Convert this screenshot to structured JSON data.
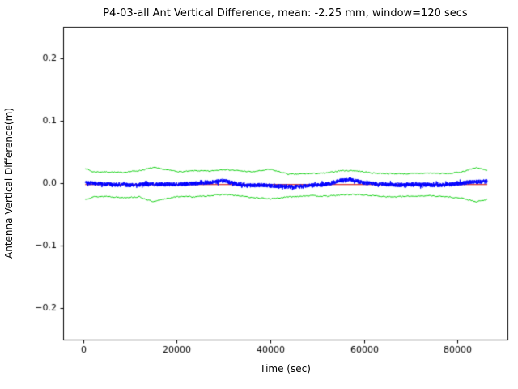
{
  "chart_data": {
    "type": "line",
    "title": "P4-03-all Ant Vertical Difference, mean: -2.25 mm, window=120 secs",
    "xlabel": "Time (sec)",
    "ylabel": "Antenna Vertical Difference(m)",
    "xlim": [
      -4320,
      90720
    ],
    "ylim": [
      -0.25,
      0.25
    ],
    "xticks": [
      0,
      20000,
      40000,
      60000,
      80000
    ],
    "xtick_labels": [
      "0",
      "20000",
      "40000",
      "60000",
      "80000"
    ],
    "yticks": [
      -0.2,
      -0.1,
      0.0,
      0.1,
      0.2
    ],
    "ytick_labels": [
      "−0.2",
      "−0.1",
      "0.0",
      "0.1",
      "0.2"
    ],
    "grid": false,
    "legend": "none",
    "axis_color": "#000000",
    "mean_mm": -2.25,
    "window_secs": 120,
    "series": [
      {
        "name": "upper-envelope",
        "color": "#00cc00",
        "style": "polyline",
        "line_width": 1,
        "x_start": 400,
        "x_end": 86400,
        "noise_amp": 0.0009,
        "seed": 7,
        "x": [
          400,
          2000,
          5000,
          8000,
          12000,
          15000,
          18000,
          21000,
          24000,
          27000,
          30000,
          33000,
          36000,
          40000,
          44000,
          48000,
          52000,
          55000,
          58000,
          62000,
          66000,
          70000,
          74000,
          78000,
          81000,
          84000,
          86400
        ],
        "y": [
          0.024,
          0.018,
          0.018,
          0.017,
          0.02,
          0.025,
          0.021,
          0.018,
          0.02,
          0.019,
          0.022,
          0.02,
          0.018,
          0.022,
          0.014,
          0.015,
          0.016,
          0.02,
          0.02,
          0.016,
          0.015,
          0.015,
          0.016,
          0.015,
          0.018,
          0.025,
          0.02
        ]
      },
      {
        "name": "lower-envelope",
        "color": "#00cc00",
        "style": "polyline",
        "line_width": 1,
        "x_start": 400,
        "x_end": 86400,
        "noise_amp": 0.0009,
        "seed": 13,
        "x": [
          400,
          2000,
          5000,
          8000,
          12000,
          15000,
          18000,
          21000,
          24000,
          27000,
          30000,
          33000,
          36000,
          40000,
          44000,
          48000,
          52000,
          55000,
          58000,
          62000,
          66000,
          70000,
          74000,
          78000,
          81000,
          84000,
          86400
        ],
        "y": [
          -0.026,
          -0.022,
          -0.021,
          -0.023,
          -0.022,
          -0.03,
          -0.024,
          -0.021,
          -0.022,
          -0.02,
          -0.018,
          -0.02,
          -0.023,
          -0.025,
          -0.022,
          -0.02,
          -0.021,
          -0.019,
          -0.018,
          -0.02,
          -0.022,
          -0.021,
          -0.02,
          -0.022,
          -0.024,
          -0.03,
          -0.026
        ]
      },
      {
        "name": "mean-line",
        "color": "#cc0000",
        "style": "hline",
        "line_width": 1,
        "y": -0.00225,
        "x_start": 400,
        "x_end": 86400
      },
      {
        "name": "vertical-difference",
        "color": "#0000ff",
        "style": "noisy",
        "line_width": 1,
        "x_start": 400,
        "x_end": 86400,
        "n": 2600,
        "noise_amp": 0.0035,
        "seed": 42,
        "x": [
          400,
          5000,
          10000,
          15000,
          20000,
          25000,
          28000,
          30000,
          32000,
          35000,
          38000,
          42000,
          45000,
          48000,
          52000,
          55000,
          57000,
          60000,
          63000,
          67000,
          71000,
          75000,
          79000,
          83000,
          86400
        ],
        "y": [
          0.001,
          -0.002,
          -0.003,
          -0.002,
          -0.002,
          0.0,
          0.002,
          0.004,
          0.0,
          -0.004,
          -0.003,
          -0.005,
          -0.006,
          -0.004,
          -0.002,
          0.004,
          0.006,
          0.0,
          -0.001,
          -0.003,
          -0.002,
          -0.003,
          -0.002,
          0.002,
          0.003
        ]
      }
    ]
  }
}
